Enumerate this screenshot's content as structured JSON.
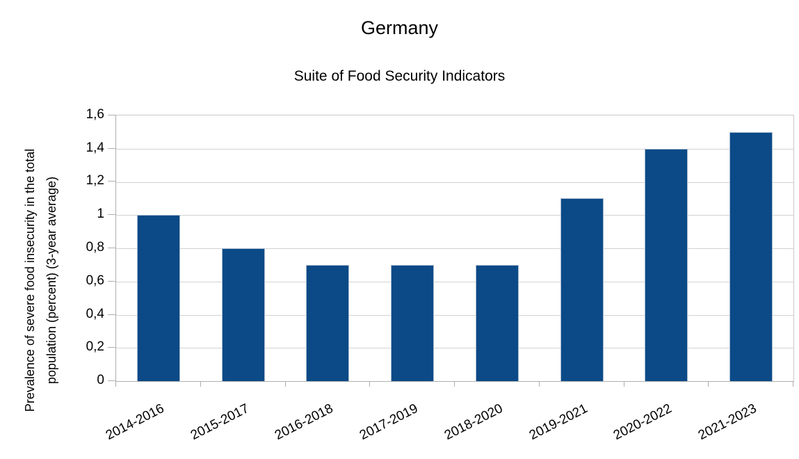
{
  "chart_data": {
    "type": "bar",
    "title": "Germany",
    "subtitle": "Suite of Food Security Indicators",
    "ylabel": "Prevalence of severe food insecurity in the total population (percent) (3-year average)",
    "ylabel_lines": [
      "Prevalence of severe food insecurity in the total",
      "population (percent) (3-year average)"
    ],
    "xlabel": "",
    "categories": [
      "2014-2016",
      "2015-2017",
      "2016-2018",
      "2017-2019",
      "2018-2020",
      "2019-2021",
      "2020-2022",
      "2021-2023"
    ],
    "values": [
      1.0,
      0.8,
      0.7,
      0.7,
      0.7,
      1.1,
      1.4,
      1.5
    ],
    "ylim": [
      0,
      1.6
    ],
    "ytick_step": 0.2,
    "ytick_labels": [
      "0",
      "0,2",
      "0,4",
      "0,6",
      "0,8",
      "1",
      "1,2",
      "1,4",
      "1,6"
    ],
    "decimal_separator": ",",
    "grid": "horizontal",
    "legend_position": "none"
  },
  "colors": {
    "bar_fill": "#0b4a87",
    "bar_border": "#a6b8cd",
    "gridline": "#d2d2d2",
    "axis": "#aeaeae",
    "text": "#000000",
    "background": "#ffffff"
  }
}
